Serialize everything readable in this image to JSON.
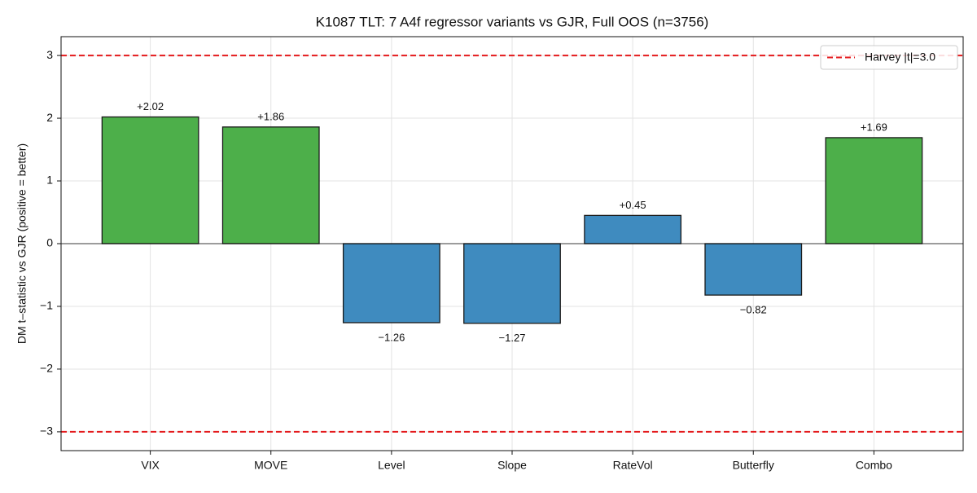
{
  "chart_data": {
    "type": "bar",
    "title": "K1087 TLT: 7 A4f regressor variants vs GJR, Full OOS (n=3756)",
    "ylabel": "DM t–statistic vs GJR (positive = better)",
    "categories": [
      "VIX",
      "MOVE",
      "Level",
      "Slope",
      "RateVol",
      "Butterfly",
      "Combo"
    ],
    "values": [
      2.02,
      1.86,
      -1.26,
      -1.27,
      0.45,
      -0.82,
      1.69
    ],
    "value_labels": [
      "+2.02",
      "+1.86",
      "−1.26",
      "−1.27",
      "+0.45",
      "−0.82",
      "+1.69"
    ],
    "colors": [
      "#4daf4a",
      "#4daf4a",
      "#3f8bbf",
      "#3f8bbf",
      "#3f8bbf",
      "#3f8bbf",
      "#4daf4a"
    ],
    "ylim": [
      -3.3,
      3.3
    ],
    "yticks": [
      {
        "value": -3,
        "label": "−3"
      },
      {
        "value": -2,
        "label": "−2"
      },
      {
        "value": -1,
        "label": "−1"
      },
      0,
      1,
      2,
      3
    ],
    "grid": true,
    "reference_lines": {
      "name": "Harvey |t|=3.0",
      "color": "#e41a1c",
      "values": [
        3,
        -3
      ]
    },
    "legend": "upper right"
  }
}
